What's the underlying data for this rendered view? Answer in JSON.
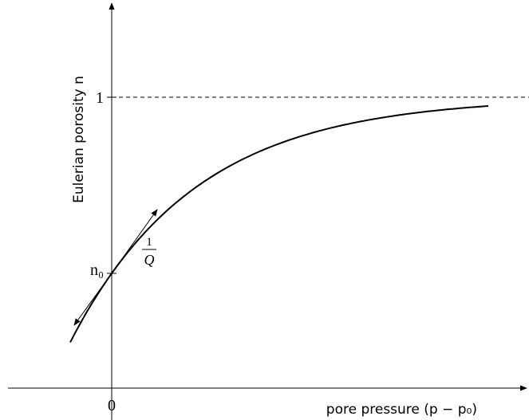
{
  "y_axis_label": "Eulerian porosity n",
  "x_axis_label": "pore pressure (p − p₀)",
  "y_ticks": [
    "1",
    "n₀"
  ],
  "x_ticks": [
    "0"
  ],
  "slope_annotation": {
    "numerator": "1",
    "denominator": "Q"
  }
}
